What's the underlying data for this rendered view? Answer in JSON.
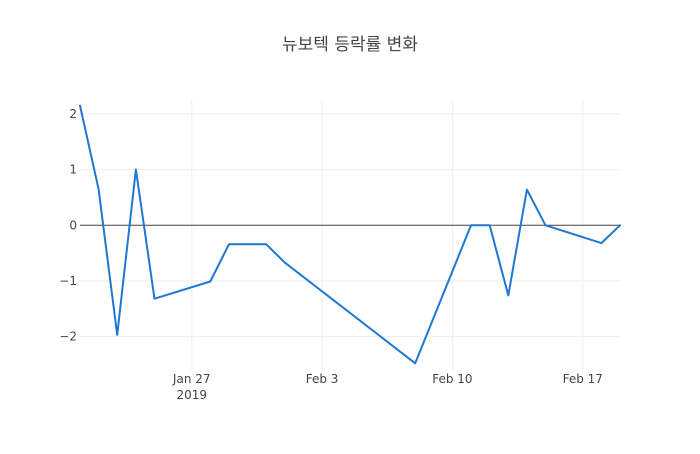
{
  "chart_data": {
    "type": "line",
    "title": "뉴보텍 등락률 변화",
    "xlabel": "",
    "ylabel": "",
    "x_axis": {
      "type": "date",
      "range": [
        "2019-01-21",
        "2019-02-19"
      ],
      "ticks": [
        {
          "date": "2019-01-27",
          "label": "Jan 27",
          "sublabel": "2019"
        },
        {
          "date": "2019-02-03",
          "label": "Feb 3",
          "sublabel": ""
        },
        {
          "date": "2019-02-10",
          "label": "Feb 10",
          "sublabel": ""
        },
        {
          "date": "2019-02-17",
          "label": "Feb 17",
          "sublabel": ""
        }
      ]
    },
    "y_axis": {
      "range": [
        -2.6,
        2.25
      ],
      "ticks": [
        {
          "value": 2,
          "label": "2"
        },
        {
          "value": 1,
          "label": "1"
        },
        {
          "value": 0,
          "label": "0"
        },
        {
          "value": -1,
          "label": "−1"
        },
        {
          "value": -2,
          "label": "−2"
        }
      ]
    },
    "grid": true,
    "zero_line": true,
    "series": [
      {
        "color": "#1f77d4",
        "x": [
          "2019-01-21",
          "2019-01-22",
          "2019-01-23",
          "2019-01-24",
          "2019-01-25",
          "2019-01-28",
          "2019-01-29",
          "2019-01-30",
          "2019-01-31",
          "2019-02-01",
          "2019-02-08",
          "2019-02-11",
          "2019-02-12",
          "2019-02-13",
          "2019-02-14",
          "2019-02-15",
          "2019-02-18",
          "2019-02-19"
        ],
        "y": [
          2.15,
          0.65,
          -1.97,
          1.0,
          -1.32,
          -1.01,
          -0.34,
          -0.34,
          -0.34,
          -0.67,
          -2.48,
          0.0,
          0.0,
          -1.26,
          0.64,
          0.0,
          -0.32,
          0.0
        ]
      }
    ]
  }
}
